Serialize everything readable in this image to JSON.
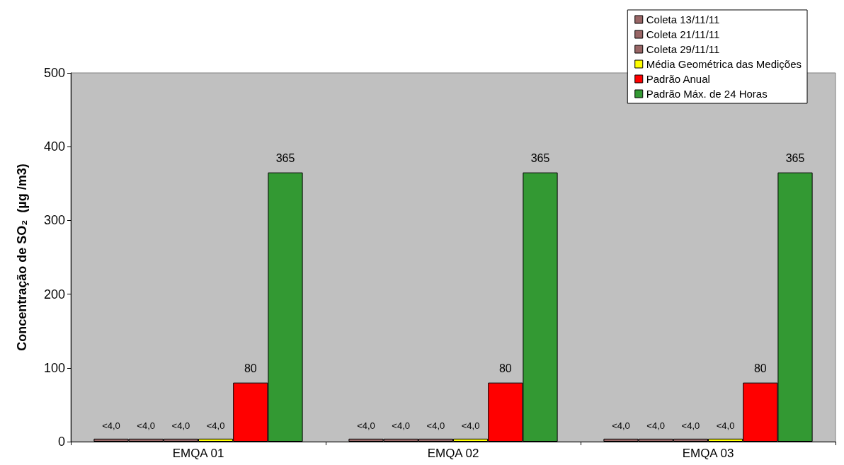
{
  "chart_data": {
    "type": "bar",
    "ylabel": "Concentração de SO₂  (µg /m3)",
    "categories": [
      "EMQA 01",
      "EMQA 02",
      "EMQA 03"
    ],
    "series": [
      {
        "name": "Coleta 13/11/11",
        "color": "#996666",
        "values": [
          4,
          4,
          4
        ],
        "value_labels": [
          "<4,0",
          "<4,0",
          "<4,0"
        ]
      },
      {
        "name": "Coleta 21/11/11",
        "color": "#996666",
        "values": [
          4,
          4,
          4
        ],
        "value_labels": [
          "<4,0",
          "<4,0",
          "<4,0"
        ]
      },
      {
        "name": "Coleta 29/11/11",
        "color": "#996666",
        "values": [
          4,
          4,
          4
        ],
        "value_labels": [
          "<4,0",
          "<4,0",
          "<4,0"
        ]
      },
      {
        "name": "Média Geométrica das Medições",
        "color": "#ffff00",
        "values": [
          4,
          4,
          4
        ],
        "value_labels": [
          "<4,0",
          "<4,0",
          "<4,0"
        ]
      },
      {
        "name": "Padrão Anual",
        "color": "#ff0000",
        "values": [
          80,
          80,
          80
        ],
        "value_labels": [
          "80",
          "80",
          "80"
        ]
      },
      {
        "name": "Padrão Máx. de 24 Horas",
        "color": "#339933",
        "values": [
          365,
          365,
          365
        ],
        "value_labels": [
          "365",
          "365",
          "365"
        ]
      }
    ],
    "ylim": [
      0,
      500
    ],
    "yticks": [
      0,
      100,
      200,
      300,
      400,
      500
    ],
    "grid": false,
    "legend": "top right"
  }
}
